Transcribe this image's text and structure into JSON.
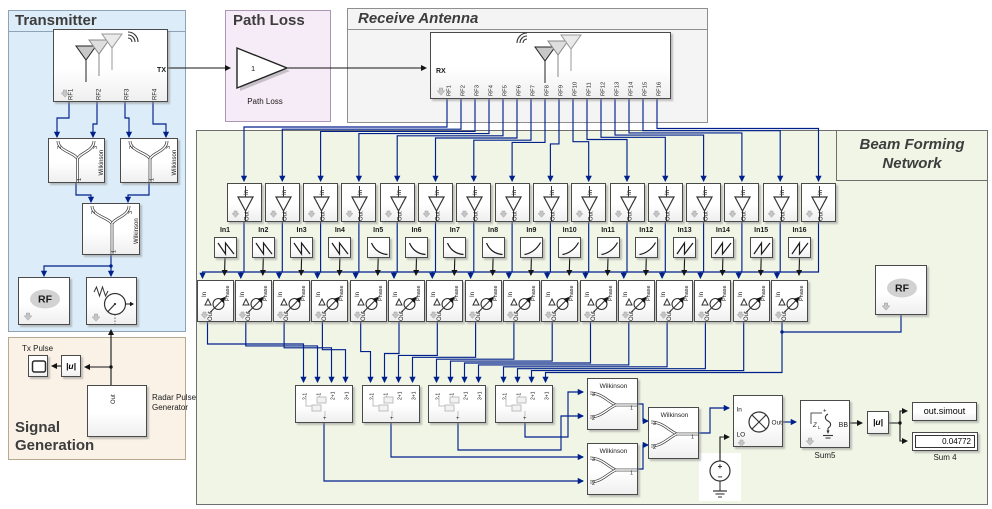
{
  "regions": {
    "transmitter": {
      "title": "Transmitter"
    },
    "path_loss": {
      "title": "Path Loss"
    },
    "receive_antenna": {
      "title": "Receive Antenna"
    },
    "beam_forming": {
      "title_line1": "Beam Forming",
      "title_line2": "Network"
    },
    "signal_generation": {
      "title": "Signal Generation"
    }
  },
  "transmitter": {
    "tx_antenna_ports": [
      "RF1",
      "RF2",
      "RF3",
      "RF4"
    ],
    "tx_port": "TX",
    "wilkinson": {
      "label": "Wilkinson",
      "port1": "1",
      "port2": "2",
      "port3": "3"
    },
    "rf_label": "RF"
  },
  "path_loss": {
    "gain_value": "1",
    "block_label": "Path Loss"
  },
  "receive_antenna": {
    "rx_port": "RX",
    "ports": [
      "RF1",
      "RF2",
      "RF3",
      "RF4",
      "RF5",
      "RF6",
      "RF7",
      "RF8",
      "RF9",
      "RF10",
      "RF11",
      "RF12",
      "RF13",
      "RF14",
      "RF15",
      "RF16"
    ]
  },
  "signal_generation": {
    "scope_label": "Tx Pulse",
    "abs_label": "|u|",
    "radar_label": "Radar Pulse Generator",
    "radar_out_port": "Out"
  },
  "beam_forming": {
    "lna": {
      "in_label": "In",
      "out_label": "Out"
    },
    "lookup_labels": [
      "In1",
      "In2",
      "In3",
      "In4",
      "In5",
      "In6",
      "In7",
      "In8",
      "In9",
      "In10",
      "In11",
      "In12",
      "In13",
      "In14",
      "In15",
      "In16"
    ],
    "lookup_icons": [
      "sawtooth-down",
      "sawtooth-down",
      "sawtooth-down",
      "sawtooth-down",
      "curve-down",
      "curve-down",
      "curve-down",
      "curve-down",
      "curve-up",
      "curve-up",
      "curve-up",
      "curve-up",
      "sawtooth-up",
      "sawtooth-up",
      "sawtooth-up",
      "sawtooth-up"
    ],
    "phase_shifter": {
      "in_label": "In",
      "phase_label": "Phase",
      "out_label": "Out"
    },
    "rf_label": "RF",
    "combiner_port_labels": [
      "2-1",
      "3-1",
      "2+1",
      "3+1"
    ],
    "wilkinson": {
      "label": "Wilkinson",
      "port1": "1",
      "port2": "2",
      "port3": "3"
    },
    "mixer": {
      "in_label": "In",
      "lo_label": "LO",
      "out_label": "Out"
    },
    "dc_source": {
      "plus": "+",
      "minus": "−"
    },
    "sum5": {
      "label": "Sum5",
      "bb_port": "BB",
      "z_label": "Z",
      "z_sub": "L"
    },
    "abs_label": "|u|",
    "to_workspace_label": "out.simout",
    "display": {
      "value": "0.04772",
      "label": "Sum 4"
    }
  },
  "colors": {
    "signal_wire": "#00208c",
    "default_wire": "#141414",
    "transmitter_bg": "#dcecf8",
    "transmitter_border": "#8fa3b8",
    "signal_bg": "#faf2e7",
    "signal_border": "#b8a88e",
    "path_loss_bg": "#f6ecf7",
    "path_loss_border": "#ab96b5",
    "receive_bg": "#f4f4f4",
    "receive_border": "#8f8f8f",
    "beam_bg": "#f0f5e6",
    "beam_border": "#6f6f6f"
  }
}
